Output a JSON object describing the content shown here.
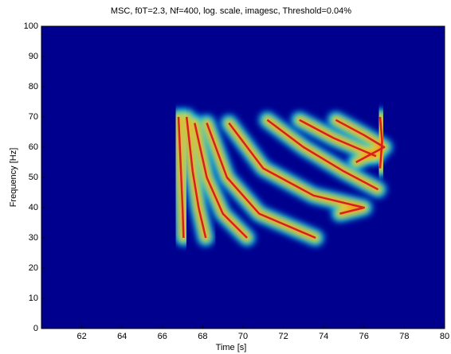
{
  "chart_data": {
    "type": "line",
    "title": "MSC, f0T=2.3, Nf=400, log. scale, imagesc, Threshold=0.04%",
    "x_label": "Time [s]",
    "y_label": "Frequency [Hz]",
    "xlim": [
      60,
      80
    ],
    "ylim": [
      0,
      100
    ],
    "xticks": [
      62,
      64,
      66,
      68,
      70,
      72,
      74,
      76,
      78,
      80
    ],
    "yticks": [
      0,
      10,
      20,
      30,
      40,
      50,
      60,
      70,
      80,
      90,
      100
    ],
    "background": "#00008f",
    "heat_colors": [
      "#00c8ff",
      "#ffff30",
      "#ff6a00"
    ],
    "series": [
      {
        "color": "#d62020",
        "x": [
          66.8,
          66.9,
          67.0,
          67.05
        ],
        "y": [
          70,
          55,
          40,
          30
        ]
      },
      {
        "color": "#d62020",
        "x": [
          67.2,
          67.5,
          67.8,
          68.15
        ],
        "y": [
          70,
          52,
          40,
          30
        ]
      },
      {
        "color": "#d62020",
        "x": [
          67.6,
          68.2,
          69.0,
          70.2
        ],
        "y": [
          68,
          50,
          38,
          30
        ]
      },
      {
        "color": "#d62020",
        "x": [
          68.2,
          69.2,
          70.8,
          73.6
        ],
        "y": [
          68,
          50,
          38,
          30
        ]
      },
      {
        "color": "#d62020",
        "x": [
          69.3,
          71.0,
          73.5,
          76.0,
          74.8
        ],
        "y": [
          68,
          53,
          44,
          40,
          38
        ]
      },
      {
        "color": "#d62020",
        "x": [
          71.2,
          73.0,
          75.0,
          76.7
        ],
        "y": [
          69,
          60,
          52,
          46
        ]
      },
      {
        "color": "#d62020",
        "x": [
          72.8,
          74.5,
          76.6
        ],
        "y": [
          69,
          63,
          57
        ]
      },
      {
        "color": "#d62020",
        "x": [
          74.6,
          76.0,
          77.0,
          75.6
        ],
        "y": [
          69,
          64,
          60,
          55
        ]
      },
      {
        "color": "#d62020",
        "x": [
          76.8,
          76.9,
          76.8
        ],
        "y": [
          70,
          62,
          53
        ]
      }
    ]
  }
}
